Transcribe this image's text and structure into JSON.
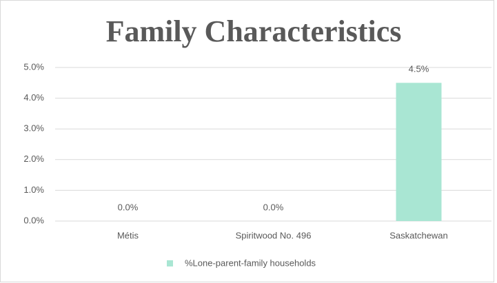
{
  "chart_data": {
    "type": "bar",
    "title": "Family Characteristics",
    "categories": [
      "Métis",
      "Spiritwood No. 496",
      "Saskatchewan"
    ],
    "series": [
      {
        "name": "%Lone-parent-family households",
        "color": "#a9e6d3",
        "values": [
          0,
          0,
          4.5
        ],
        "value_labels": [
          "0.0%",
          "0.0%",
          "4.5%"
        ]
      }
    ],
    "ylim": [
      0,
      5
    ],
    "yticks": [
      {
        "value": 0,
        "label": "0.0%"
      },
      {
        "value": 1,
        "label": "1.0%"
      },
      {
        "value": 2,
        "label": "2.0%"
      },
      {
        "value": 3,
        "label": "3.0%"
      },
      {
        "value": 4,
        "label": "4.0%"
      },
      {
        "value": 5,
        "label": "5.0%"
      }
    ],
    "grid": true,
    "legend": "bottom"
  }
}
